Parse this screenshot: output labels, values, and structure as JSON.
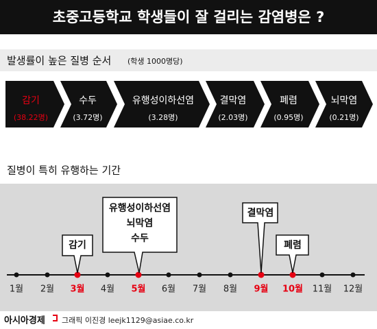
{
  "header": {
    "title": "초중고등학교 학생들이 잘 걸리는 감염병은 ?"
  },
  "ranking": {
    "title": "발생률이 높은 질병 순서",
    "note": "(학생 1000명당)",
    "items": [
      {
        "label": "감기",
        "value": "(38.22명)"
      },
      {
        "label": "수두",
        "value": "(3.72명)"
      },
      {
        "label": "유행성이하선염",
        "value": "(3.28명)"
      },
      {
        "label": "결막염",
        "value": "(2.03명)"
      },
      {
        "label": "폐렴",
        "value": "(0.95명)"
      },
      {
        "label": "뇌막염",
        "value": "(0.21명)"
      }
    ]
  },
  "season": {
    "title": "질병이 특히 유행하는 기간",
    "months": [
      "1월",
      "2월",
      "3월",
      "4월",
      "5월",
      "6월",
      "7월",
      "8월",
      "9월",
      "10월",
      "11월",
      "12월"
    ],
    "callouts": [
      {
        "lines": [
          "감기"
        ]
      },
      {
        "lines": [
          "유행성이하선염",
          "뇌막염",
          "수두"
        ]
      },
      {
        "lines": [
          "결막염"
        ]
      },
      {
        "lines": [
          "폐렴"
        ]
      }
    ]
  },
  "footer": {
    "brand": "아시아경제",
    "credit": "그래픽 이진경 leejk1129@asiae.co.kr"
  }
}
